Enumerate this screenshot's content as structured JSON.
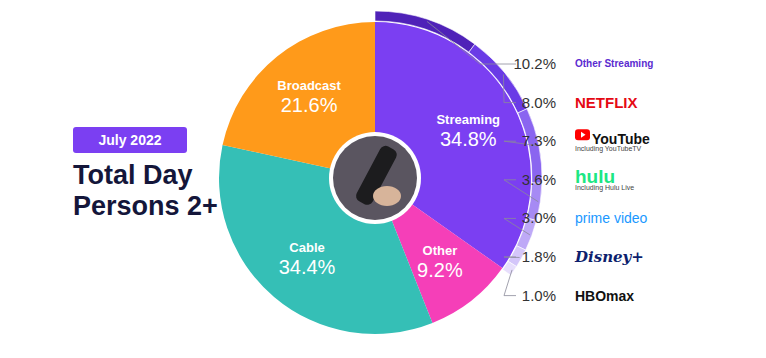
{
  "chart_data": [
    {
      "type": "pie",
      "title": [
        "Total Day",
        "Persons 2+"
      ],
      "subtitle": "July 2022",
      "categories": [
        "Streaming",
        "Other",
        "Cable",
        "Broadcast"
      ],
      "values": [
        34.8,
        9.2,
        34.4,
        21.6
      ],
      "value_labels": [
        "34.8%",
        "9.2%",
        "34.4%",
        "21.6%"
      ],
      "colors": [
        "#7b3ff2",
        "#f53fb8",
        "#35bfb6",
        "#ff9a1a"
      ],
      "data_labels": true
    },
    {
      "type": "pie",
      "categories": [
        "Other Streaming",
        "NETFLIX",
        "YouTube",
        "hulu",
        "prime video",
        "Disney+",
        "HBOmax"
      ],
      "notes": [
        null,
        null,
        "Including YouTubeTV",
        "Including Hulu Live",
        null,
        null,
        null
      ],
      "values": [
        10.2,
        8.0,
        7.3,
        3.6,
        3.0,
        1.8,
        1.0
      ],
      "value_labels": [
        "10.2%",
        "8.0%",
        "7.3%",
        "3.6%",
        "3.0%",
        "1.8%",
        "1.0%"
      ],
      "colors": [
        "#4f22b8",
        "#6a3be6",
        "#8a65f0",
        "#a68af4",
        "#bea9f7",
        "#d4c6fa",
        "#e7defc"
      ],
      "data_labels": true
    }
  ]
}
